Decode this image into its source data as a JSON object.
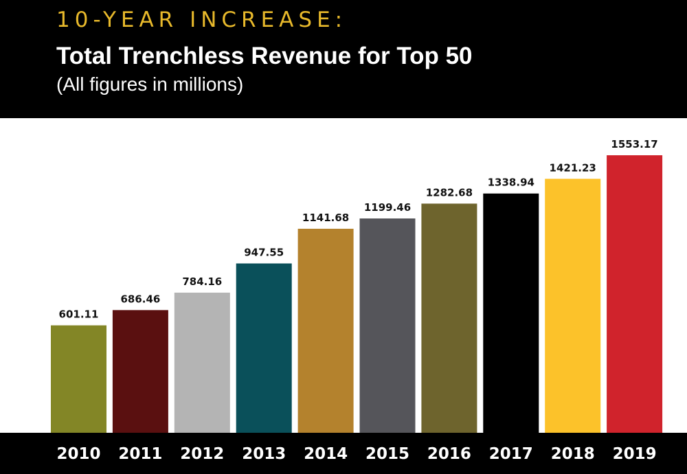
{
  "header": {
    "eyebrow": "10-YEAR INCREASE:",
    "title": "Total Trenchless Revenue for Top 50",
    "subtitle": "(All figures in millions)"
  },
  "colors": {
    "eyebrow": "#e8b92b",
    "header_background": "#000000",
    "plot_background": "#ffffff",
    "axis_band": "#000000"
  },
  "chart_data": {
    "type": "bar",
    "title": "Total Trenchless Revenue for Top 50",
    "subtitle": "(All figures in millions)",
    "xlabel": "",
    "ylabel": "",
    "categories": [
      "2010",
      "2011",
      "2012",
      "2013",
      "2014",
      "2015",
      "2016",
      "2017",
      "2018",
      "2019"
    ],
    "values": [
      601.11,
      686.46,
      784.16,
      947.55,
      1141.68,
      1199.46,
      1282.68,
      1338.94,
      1421.23,
      1553.17
    ],
    "value_labels": [
      "601.11",
      "686.46",
      "784.16",
      "947.55",
      "1141.68",
      "1199.46",
      "1282.68",
      "1338.94",
      "1421.23",
      "1553.17"
    ],
    "bar_colors": [
      "#838626",
      "#5a1010",
      "#b4b4b4",
      "#0a505a",
      "#b4822d",
      "#55555a",
      "#6e642d",
      "#000000",
      "#fcc22a",
      "#d0232c"
    ],
    "ylim": [
      0,
      1553.17
    ],
    "grid": false,
    "legend": false
  }
}
